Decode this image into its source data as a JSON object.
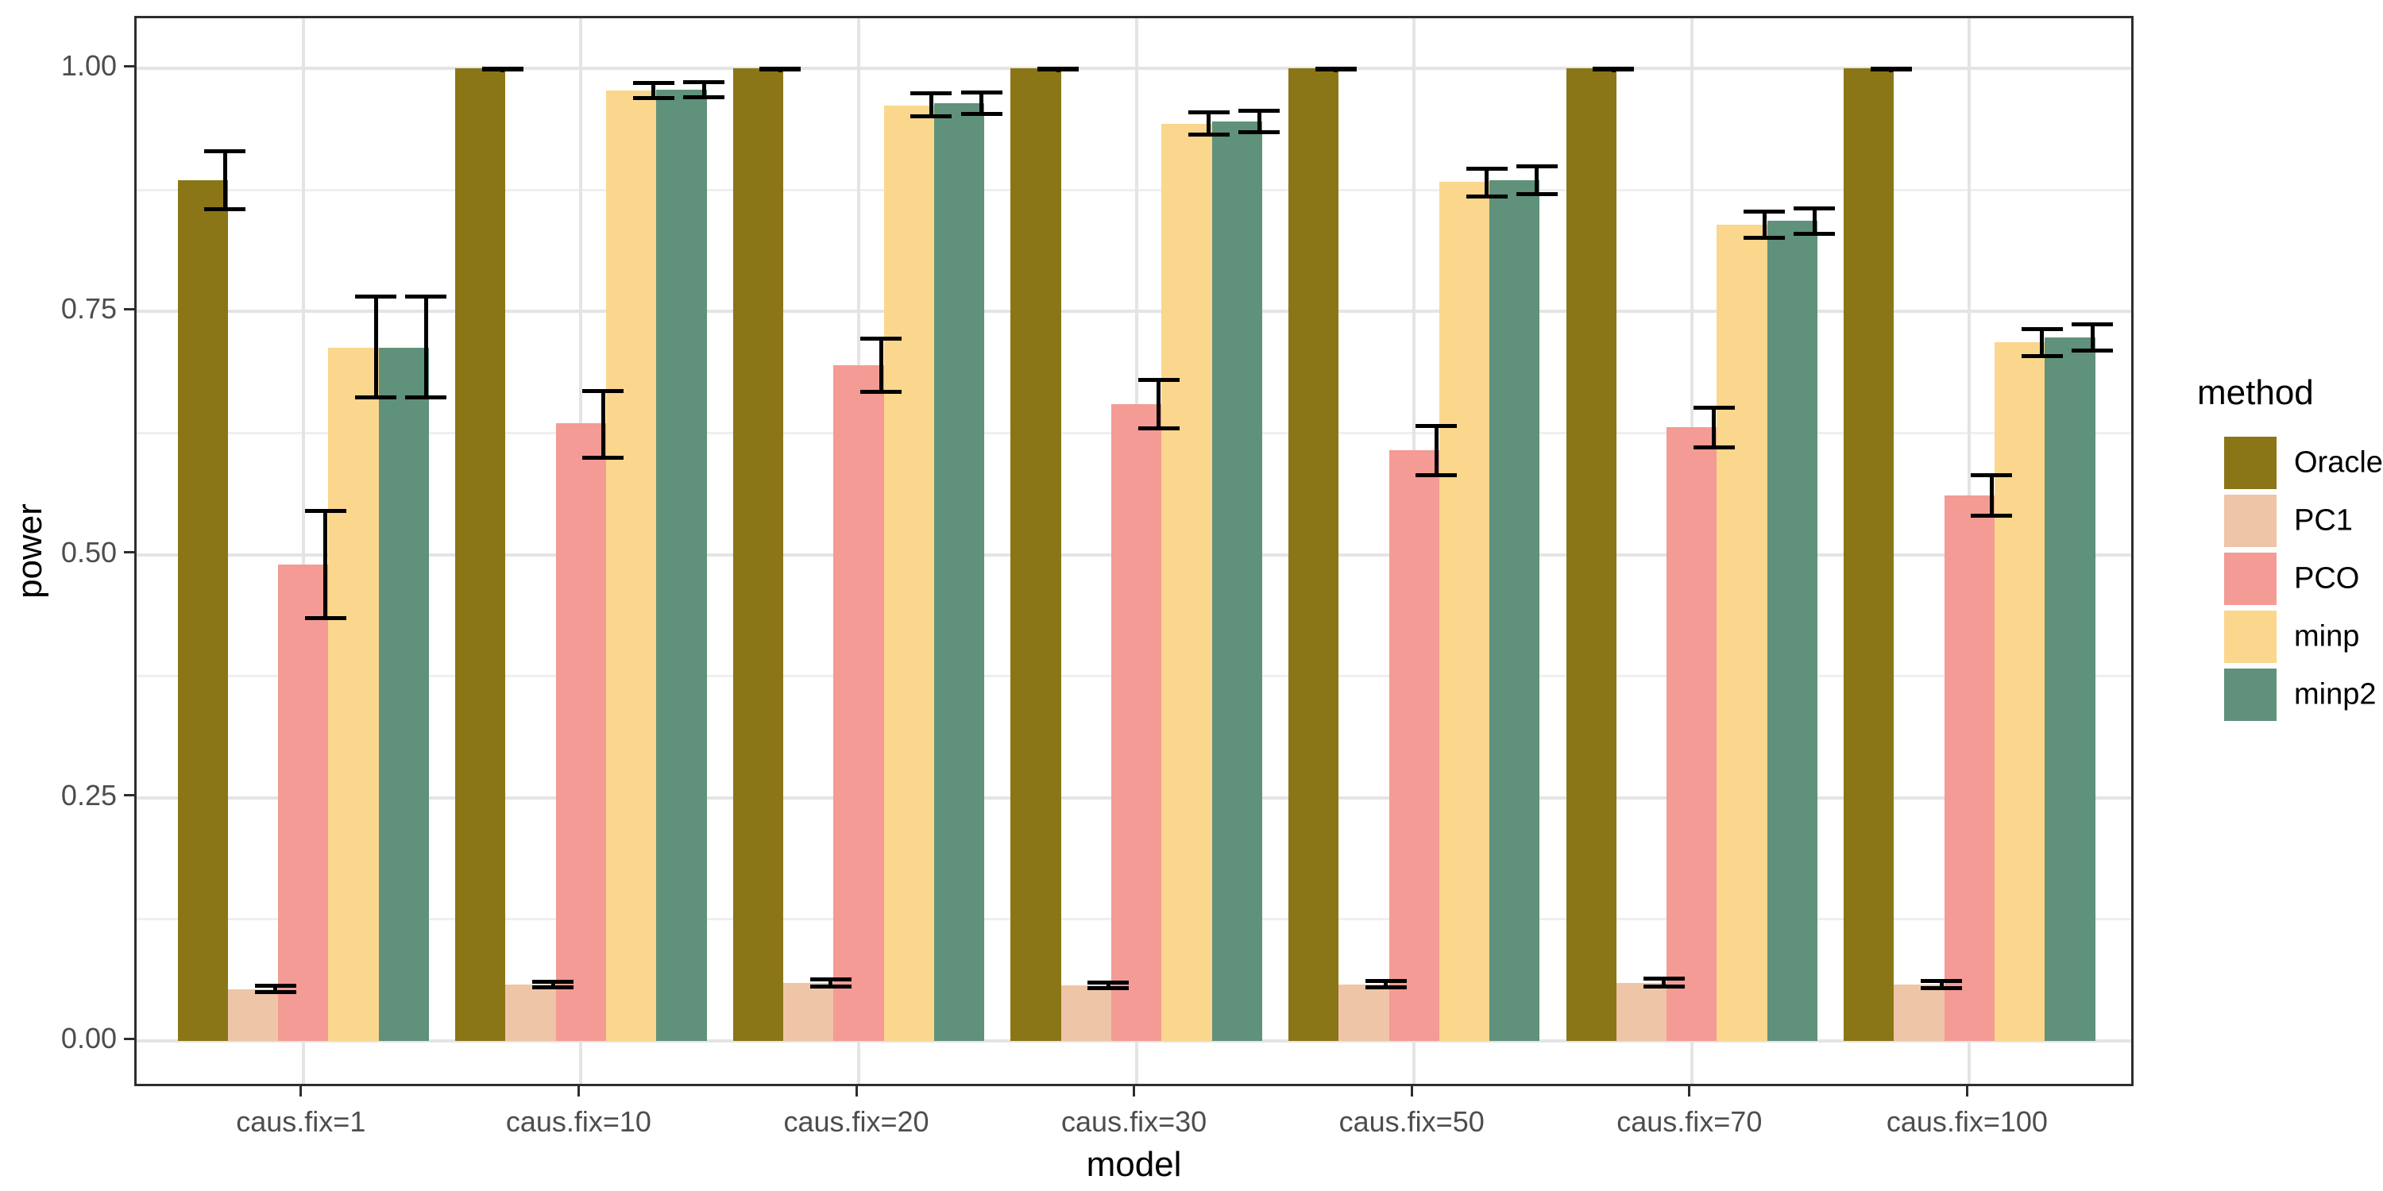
{
  "chart_data": {
    "type": "bar",
    "title": "",
    "xlabel": "model",
    "ylabel": "power",
    "legend_title": "method",
    "legend_position": "right",
    "grid": "on",
    "ylim": [
      0,
      1.05
    ],
    "y_ticks": [
      0,
      0.25,
      0.5,
      0.75,
      1.0
    ],
    "y_tick_labels": [
      "0.00",
      "0.25",
      "0.50",
      "0.75",
      "1.00"
    ],
    "y_minor_ticks": [
      0.125,
      0.375,
      0.625,
      0.875
    ],
    "categories": [
      "caus.fix=1",
      "caus.fix=10",
      "caus.fix=20",
      "caus.fix=30",
      "caus.fix=50",
      "caus.fix=70",
      "caus.fix=100"
    ],
    "series": [
      {
        "name": "Oracle",
        "color": "#8a7617",
        "values": [
          0.885,
          1.0,
          1.0,
          1.0,
          1.0,
          1.0,
          1.0
        ],
        "err_low": [
          0.855,
          0.999,
          0.999,
          0.999,
          0.999,
          0.999,
          0.999
        ],
        "err_high": [
          0.915,
          1.0,
          1.0,
          1.0,
          1.0,
          1.0,
          1.0
        ]
      },
      {
        "name": "PC1",
        "color": "#efc5a7",
        "values": [
          0.053,
          0.058,
          0.06,
          0.057,
          0.058,
          0.06,
          0.058
        ],
        "err_low": [
          0.05,
          0.055,
          0.056,
          0.054,
          0.055,
          0.056,
          0.054
        ],
        "err_high": [
          0.057,
          0.061,
          0.063,
          0.06,
          0.062,
          0.064,
          0.062
        ]
      },
      {
        "name": "PCO",
        "color": "#f39b94",
        "values": [
          0.49,
          0.635,
          0.695,
          0.655,
          0.607,
          0.631,
          0.561
        ],
        "err_low": [
          0.435,
          0.6,
          0.667,
          0.63,
          0.582,
          0.61,
          0.54
        ],
        "err_high": [
          0.545,
          0.668,
          0.722,
          0.68,
          0.632,
          0.651,
          0.582
        ]
      },
      {
        "name": "minp",
        "color": "#fbd68d",
        "values": [
          0.713,
          0.977,
          0.962,
          0.943,
          0.883,
          0.839,
          0.718
        ],
        "err_low": [
          0.662,
          0.969,
          0.951,
          0.932,
          0.868,
          0.826,
          0.704
        ],
        "err_high": [
          0.765,
          0.985,
          0.974,
          0.955,
          0.897,
          0.853,
          0.732
        ]
      },
      {
        "name": "minp2",
        "color": "#5f917b",
        "values": [
          0.713,
          0.978,
          0.964,
          0.945,
          0.885,
          0.843,
          0.723
        ],
        "err_low": [
          0.662,
          0.97,
          0.953,
          0.934,
          0.871,
          0.83,
          0.71
        ],
        "err_high": [
          0.765,
          0.986,
          0.975,
          0.956,
          0.899,
          0.856,
          0.737
        ]
      }
    ]
  }
}
